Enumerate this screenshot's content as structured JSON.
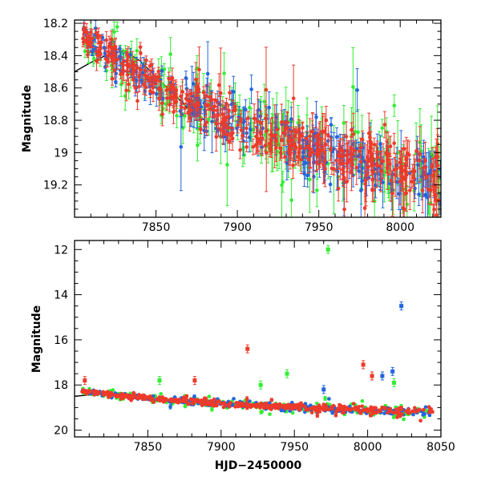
{
  "chart_data": [
    {
      "type": "scatter",
      "ylabel": "Magnitude",
      "xlabel": "",
      "xlim": [
        7800,
        8025
      ],
      "ylim": [
        19.4,
        18.18
      ],
      "y_inverted": true,
      "x_ticks": [
        7850,
        7900,
        7950,
        8000
      ],
      "x_tick_labels": [
        "7850",
        "7900",
        "7950",
        "8000"
      ],
      "y_ticks": [
        18.2,
        18.4,
        18.6,
        18.8,
        19,
        19.2
      ],
      "y_tick_labels": [
        "18.2",
        "18.4",
        "18.6",
        "18.8",
        "19",
        "19.2"
      ],
      "series_colors": {
        "green": "#33ee33",
        "blue": "#2266dd",
        "red": "#ee3a2a",
        "model": "#000000"
      },
      "model_curve": {
        "x": [
          7800,
          7806,
          7812,
          7818,
          7824,
          7830,
          7840,
          7850,
          7860,
          7870,
          7880
        ],
        "y": [
          18.5,
          18.465,
          18.432,
          18.405,
          18.385,
          18.37,
          18.43,
          18.53,
          18.63,
          18.73,
          18.8
        ]
      },
      "trend": {
        "x": [
          7805,
          7830,
          7860,
          7900,
          7950,
          8000,
          8025
        ],
        "y": [
          18.27,
          18.36,
          18.64,
          18.84,
          18.98,
          19.12,
          19.2
        ]
      }
    },
    {
      "type": "scatter",
      "ylabel": "Magnitude",
      "xlabel": "HJD−2450000",
      "xlim": [
        7800,
        8050
      ],
      "ylim": [
        20.3,
        11.6
      ],
      "y_inverted": true,
      "x_ticks": [
        7850,
        7900,
        7950,
        8000,
        8050
      ],
      "x_tick_labels": [
        "7850",
        "7900",
        "7950",
        "8000",
        "8050"
      ],
      "y_ticks": [
        12,
        14,
        16,
        18,
        20
      ],
      "y_tick_labels": [
        "12",
        "14",
        "16",
        "18",
        "20"
      ],
      "series_colors": {
        "green": "#33ee33",
        "blue": "#2266dd",
        "red": "#ee3a2a",
        "model": "#000000"
      },
      "model_curve": {
        "x": [
          7800,
          7812,
          7824,
          7836,
          7850
        ],
        "y": [
          18.5,
          18.43,
          18.38,
          18.42,
          18.55
        ]
      },
      "trend": {
        "x": [
          7805,
          7850,
          7900,
          7950,
          8000,
          8045
        ],
        "y": [
          18.27,
          18.58,
          18.84,
          18.98,
          19.12,
          19.22
        ]
      },
      "outliers": [
        {
          "series": "green",
          "x": 7973,
          "y": 12.0
        },
        {
          "series": "blue",
          "x": 8023,
          "y": 14.5
        },
        {
          "series": "red",
          "x": 7918,
          "y": 16.4
        },
        {
          "series": "red",
          "x": 7997,
          "y": 17.1
        },
        {
          "series": "red",
          "x": 8003,
          "y": 17.6
        },
        {
          "series": "blue",
          "x": 8017,
          "y": 17.4
        },
        {
          "series": "blue",
          "x": 8010,
          "y": 17.6
        },
        {
          "series": "green",
          "x": 7945,
          "y": 17.5
        },
        {
          "series": "green",
          "x": 7927,
          "y": 18.0
        },
        {
          "series": "red",
          "x": 7807,
          "y": 17.8
        },
        {
          "series": "red",
          "x": 7882,
          "y": 17.8
        },
        {
          "series": "green",
          "x": 7858,
          "y": 17.8
        },
        {
          "series": "blue",
          "x": 7970,
          "y": 18.2
        },
        {
          "series": "green",
          "x": 8018,
          "y": 17.9
        }
      ]
    }
  ]
}
